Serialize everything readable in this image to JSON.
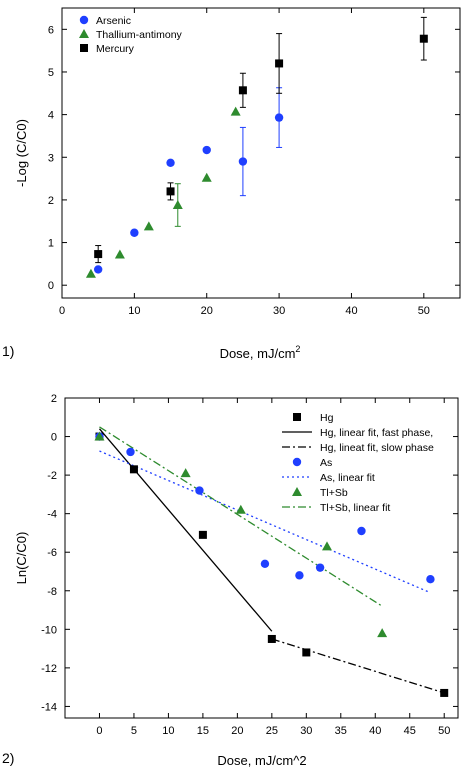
{
  "chart_data": [
    {
      "panel": "1)",
      "type": "scatter",
      "xlabel_main": "Dose, mJ/cm",
      "xlabel_sup": "2",
      "ylabel": "-Log (C/C0)",
      "xlim": [
        0,
        55
      ],
      "ylim": [
        -0.3,
        6.5
      ],
      "xticks": [
        "0",
        "10",
        "20",
        "30",
        "40",
        "50"
      ],
      "xtick_values": [
        0,
        10,
        20,
        30,
        40,
        50
      ],
      "yticks": [
        "0",
        "1",
        "2",
        "3",
        "4",
        "5",
        "6"
      ],
      "ytick_values": [
        0,
        1,
        2,
        3,
        4,
        5,
        6
      ],
      "legend_position": "top-left",
      "series": [
        {
          "name": "Arsenic",
          "marker": "circle",
          "color": "#1f3fff",
          "points": [
            {
              "x": 5,
              "y": 0.37
            },
            {
              "x": 10,
              "y": 1.23
            },
            {
              "x": 15,
              "y": 2.87
            },
            {
              "x": 20,
              "y": 3.17
            },
            {
              "x": 25,
              "y": 2.9,
              "err": 0.8
            },
            {
              "x": 30,
              "y": 3.93,
              "err": 0.7
            }
          ]
        },
        {
          "name": "Thallium-antimony",
          "marker": "triangle",
          "color": "#2e8b2e",
          "points": [
            {
              "x": 4,
              "y": 0.27
            },
            {
              "x": 8,
              "y": 0.72
            },
            {
              "x": 12,
              "y": 1.38
            },
            {
              "x": 16,
              "y": 1.88,
              "err": 0.5
            },
            {
              "x": 20,
              "y": 2.52
            },
            {
              "x": 24,
              "y": 4.07
            }
          ]
        },
        {
          "name": "Mercury",
          "marker": "square",
          "color": "#000000",
          "points": [
            {
              "x": 5,
              "y": 0.73,
              "err": 0.2
            },
            {
              "x": 15,
              "y": 2.2,
              "err": 0.2
            },
            {
              "x": 25,
              "y": 4.57,
              "err": 0.4
            },
            {
              "x": 30,
              "y": 5.2,
              "err": 0.7
            },
            {
              "x": 50,
              "y": 5.78,
              "err": 0.5
            }
          ]
        }
      ]
    },
    {
      "panel": "2)",
      "type": "scatter",
      "xlabel": "Dose, mJ/cm^2",
      "ylabel": "Ln(C/C0)",
      "xlim": [
        -5,
        52
      ],
      "ylim": [
        -14.6,
        2
      ],
      "xticks": [
        "0",
        "5",
        "10",
        "15",
        "20",
        "25",
        "30",
        "35",
        "40",
        "45",
        "50"
      ],
      "xtick_values": [
        0,
        5,
        10,
        15,
        20,
        25,
        30,
        35,
        40,
        45,
        50
      ],
      "yticks": [
        "2",
        "0",
        "-2",
        "-4",
        "-6",
        "-8",
        "-10",
        "-12",
        "-14"
      ],
      "ytick_values": [
        2,
        0,
        -2,
        -4,
        -6,
        -8,
        -10,
        -12,
        -14
      ],
      "legend_position": "top-right",
      "legend": [
        "Hg",
        "Hg, linear fit, fast phase,",
        "Hg, lineat fit, slow phase",
        "As",
        "As, linear fit",
        "Tl+Sb",
        "Tl+Sb, linear fit"
      ],
      "series": [
        {
          "legend_index": 0,
          "marker": "square",
          "color": "#000000",
          "points": [
            {
              "x": 0,
              "y": 0
            },
            {
              "x": 5,
              "y": -1.7
            },
            {
              "x": 15,
              "y": -5.1
            },
            {
              "x": 25,
              "y": -10.5
            },
            {
              "x": 30,
              "y": -11.2
            },
            {
              "x": 50,
              "y": -13.3
            }
          ]
        },
        {
          "legend_index": 3,
          "marker": "circle",
          "color": "#1f3fff",
          "points": [
            {
              "x": 0,
              "y": 0
            },
            {
              "x": 4.5,
              "y": -0.8
            },
            {
              "x": 14.5,
              "y": -2.8
            },
            {
              "x": 24,
              "y": -6.6
            },
            {
              "x": 29,
              "y": -7.2
            },
            {
              "x": 32,
              "y": -6.8
            },
            {
              "x": 38,
              "y": -4.9
            },
            {
              "x": 48,
              "y": -7.4
            }
          ]
        },
        {
          "legend_index": 5,
          "marker": "triangle",
          "color": "#2e8b2e",
          "points": [
            {
              "x": 0,
              "y": 0
            },
            {
              "x": 12.5,
              "y": -1.9
            },
            {
              "x": 20.5,
              "y": -3.8
            },
            {
              "x": 33,
              "y": -5.7
            },
            {
              "x": 41,
              "y": -10.2
            }
          ]
        }
      ],
      "fits": [
        {
          "legend_index": 1,
          "dash": "solid",
          "color": "#000000",
          "x": [
            0,
            25
          ],
          "y": [
            0.4,
            -10.1
          ]
        },
        {
          "legend_index": 2,
          "dash": "dashdot",
          "color": "#000000",
          "x": [
            25,
            50
          ],
          "y": [
            -10.5,
            -13.3
          ]
        },
        {
          "legend_index": 4,
          "dash": "dotted",
          "color": "#1f3fff",
          "x": [
            0,
            48
          ],
          "y": [
            -0.75,
            -8.1
          ]
        },
        {
          "legend_index": 6,
          "dash": "dashdot",
          "color": "#2e8b2e",
          "x": [
            0,
            41
          ],
          "y": [
            0.5,
            -8.8
          ]
        }
      ]
    }
  ]
}
